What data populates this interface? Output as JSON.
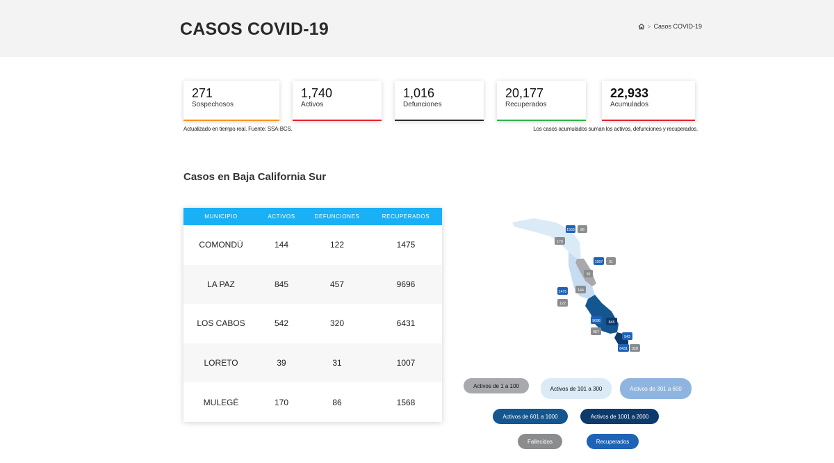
{
  "header": {
    "title": "CASOS COVID-19",
    "breadcrumb_current": "Casos COVID-19",
    "breadcrumb_sep": ">"
  },
  "stats": [
    {
      "value": "271",
      "label": "Sospechosos",
      "color": "#f7941d"
    },
    {
      "value": "1,740",
      "label": "Activos",
      "color": "#e8202a"
    },
    {
      "value": "1,016",
      "label": "Defunciones",
      "color": "#2a2a2a"
    },
    {
      "value": "20,177",
      "label": "Recuperados",
      "color": "#2db34a"
    },
    {
      "value": "22,933",
      "label": "Acumulados",
      "color": "#e8202a"
    }
  ],
  "notes": {
    "left": "Actualizado en tiempo real. Fuente: SSA-BCS.",
    "right": "Los casos acumulados suman los activos, defunciones y recuperados."
  },
  "section_title": "Casos en Baja California Sur",
  "table": {
    "headers": [
      "MUNICIPIO",
      "ACTIVOS",
      "DEFUNCIONES",
      "RECUPERADOS"
    ],
    "rows": [
      [
        "COMONDÚ",
        "144",
        "122",
        "1475"
      ],
      [
        "LA PAZ",
        "845",
        "457",
        "9696"
      ],
      [
        "LOS CABOS",
        "542",
        "320",
        "6431"
      ],
      [
        "LORETO",
        "39",
        "31",
        "1007"
      ],
      [
        "MULEGÉ",
        "170",
        "86",
        "1568"
      ]
    ]
  },
  "map_labels": {
    "mulege_rec": "1568",
    "mulege_def": "86",
    "mulege_act": "170",
    "loreto_rec": "1007",
    "loreto_def": "31",
    "loreto_act": "39",
    "comondu_rec": "1475",
    "comondu_def": "122",
    "comondu_act": "144",
    "lapaz_rec": "9696",
    "lapaz_def": "457",
    "lapaz_act": "845",
    "loscabos_rec": "6431",
    "loscabos_def": "320",
    "loscabos_act": "542"
  },
  "legend": [
    {
      "label": "Activos de 1 a 100",
      "bg": "#a7a9ac",
      "fg": "#111111"
    },
    {
      "label": "Activos de 101 a 300",
      "bg": "#dbeaf7",
      "fg": "#111111"
    },
    {
      "label": "Activos de 301 a 600",
      "bg": "#8fb4e0",
      "fg": "#ffffff"
    },
    {
      "label": "Activos de 601 a 1000",
      "bg": "#14568f",
      "fg": "#ffffff"
    },
    {
      "label": "Activos de 1001 a 2000",
      "bg": "#0d3a6b",
      "fg": "#ffffff"
    },
    {
      "label": "Fallecidos",
      "bg": "#8a8c8e",
      "fg": "#ffffff"
    },
    {
      "label": "Recuperados",
      "bg": "#1e63b5",
      "fg": "#ffffff"
    }
  ]
}
